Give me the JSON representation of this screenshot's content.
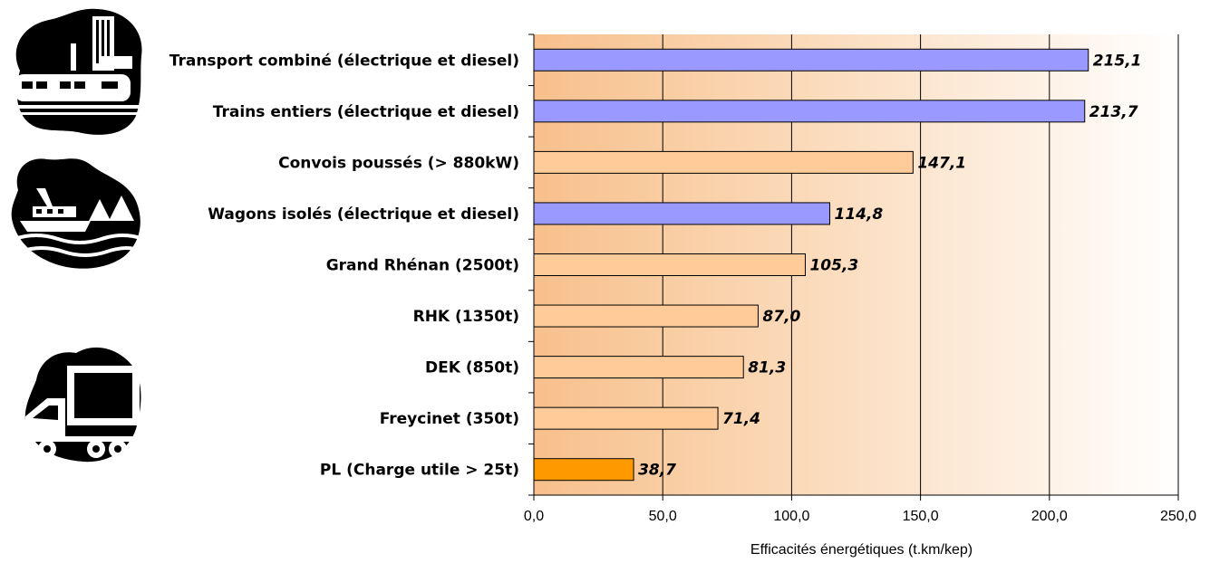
{
  "chart_data": {
    "type": "bar",
    "orientation": "horizontal",
    "categories": [
      "Transport combiné (électrique et diesel)",
      "Trains entiers (électrique et diesel)",
      "Convois poussés (> 880kW)",
      "Wagons isolés (électrique et diesel)",
      "Grand Rhénan (2500t)",
      "RHK (1350t)",
      "DEK (850t)",
      "Freycinet (350t)",
      "PL (Charge utile > 25t)"
    ],
    "values": [
      215.1,
      213.7,
      147.1,
      114.8,
      105.3,
      87.0,
      81.3,
      71.4,
      38.7
    ],
    "value_labels": [
      "215,1",
      "213,7",
      "147,1",
      "114,8",
      "105,3",
      "87,0",
      "81,3",
      "71,4",
      "38,7"
    ],
    "bar_colors": [
      "#9999ff",
      "#9999ff",
      "#ffcc99",
      "#9999ff",
      "#ffcc99",
      "#ffcc99",
      "#ffcc99",
      "#ffcc99",
      "#ff9900"
    ],
    "xlim": [
      0,
      250
    ],
    "xticks": [
      0,
      50,
      100,
      150,
      200,
      250
    ],
    "xtick_labels": [
      "0,0",
      "50,0",
      "100,0",
      "150,0",
      "200,0",
      "250,0"
    ],
    "xlabel": "Efficacités énergétiques (t.km/kep)",
    "ylabel": "",
    "title": "",
    "grid": "vertical",
    "background": "gradient from orange (left) to white (right)",
    "icons": [
      "train-icon",
      "boat-icon",
      "truck-icon"
    ]
  }
}
